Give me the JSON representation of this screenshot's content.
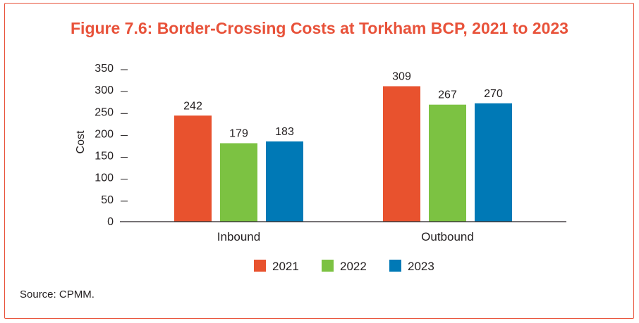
{
  "title": "Figure 7.6: Border-Crossing Costs at Torkham BCP, 2021 to 2023",
  "source": "Source: CPMM.",
  "colors": {
    "frame": "#e8523a",
    "title": "#e8523a",
    "axis": "#231f20"
  },
  "chart_data": {
    "type": "bar",
    "categories": [
      "Inbound",
      "Outbound"
    ],
    "series": [
      {
        "name": "2021",
        "values": [
          242,
          309
        ],
        "color": "#e8522e"
      },
      {
        "name": "2022",
        "values": [
          179,
          267
        ],
        "color": "#7cc242"
      },
      {
        "name": "2023",
        "values": [
          183,
          270
        ],
        "color": "#0079b6"
      }
    ],
    "ylabel": "Cost",
    "xlabel": "",
    "ylim": [
      0,
      350
    ],
    "yticks": [
      0,
      50,
      100,
      150,
      200,
      250,
      300,
      350
    ],
    "data_labels": true,
    "grid": false,
    "legend": "bottom-center"
  }
}
